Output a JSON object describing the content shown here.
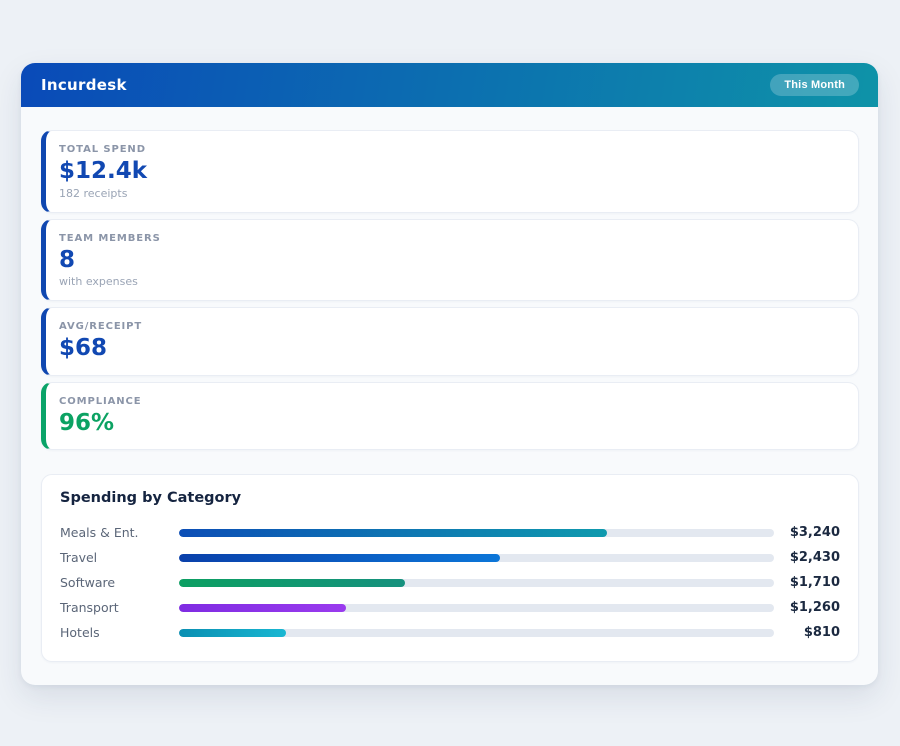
{
  "page": {
    "background_color": "#edf1f6"
  },
  "header": {
    "title": "Incurdesk",
    "badge": "This Month",
    "gradient_from": "#0a4ab8",
    "gradient_to": "#0e93a8"
  },
  "stats": [
    {
      "label": "TOTAL SPEND",
      "value": "$12.4k",
      "sub": "182 receipts",
      "accent": "#0f47b0",
      "value_color": "#1148b2"
    },
    {
      "label": "TEAM MEMBERS",
      "value": "8",
      "sub": "with expenses",
      "accent": "#0f47b0",
      "value_color": "#1148b2"
    },
    {
      "label": "AVG/RECEIPT",
      "value": "$68",
      "sub": "",
      "accent": "#0f47b0",
      "value_color": "#1148b2"
    },
    {
      "label": "COMPLIANCE",
      "value": "96%",
      "sub": "",
      "accent": "#0aa368",
      "value_color": "#0ca263"
    }
  ],
  "chart_data": {
    "type": "bar",
    "orientation": "horizontal",
    "title": "Spending by Category",
    "categories": [
      "Meals & Ent.",
      "Travel",
      "Software",
      "Transport",
      "Hotels"
    ],
    "values": [
      3240,
      2430,
      1710,
      1260,
      810
    ],
    "value_labels": [
      "$3,240",
      "$2,430",
      "$1,710",
      "$1,260",
      "$810"
    ],
    "xlim": [
      0,
      4500
    ],
    "grid": false,
    "legend": false,
    "track_color": "#e3e8f0",
    "bar_colors": [
      [
        "#0c4eb6",
        "#0f9aae"
      ],
      [
        "#0a40aa",
        "#0c76d8"
      ],
      [
        "#0c9f62",
        "#16917e"
      ],
      [
        "#7f2ce2",
        "#9a3bee"
      ],
      [
        "#0a8fb2",
        "#19b7d2"
      ]
    ]
  }
}
